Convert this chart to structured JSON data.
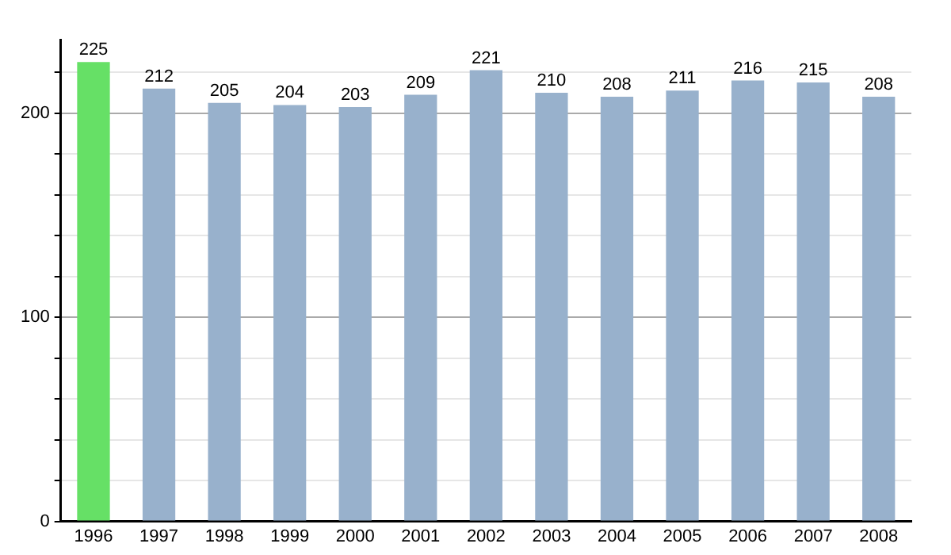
{
  "chart_data": {
    "type": "bar",
    "categories": [
      "1996",
      "1997",
      "1998",
      "1999",
      "2000",
      "2001",
      "2002",
      "2003",
      "2004",
      "2005",
      "2006",
      "2007",
      "2008"
    ],
    "values": [
      225,
      212,
      205,
      204,
      203,
      209,
      221,
      210,
      208,
      211,
      216,
      215,
      208
    ],
    "colors": [
      "#66e066",
      "#98b1cc",
      "#98b1cc",
      "#98b1cc",
      "#98b1cc",
      "#98b1cc",
      "#98b1cc",
      "#98b1cc",
      "#98b1cc",
      "#98b1cc",
      "#98b1cc",
      "#98b1cc",
      "#98b1cc"
    ],
    "ylim": [
      0,
      236
    ],
    "yticks": [
      0,
      {
        "value": 20,
        "label": null
      },
      {
        "value": 40,
        "label": null
      },
      {
        "value": 60,
        "label": null
      },
      {
        "value": 80,
        "label": null
      },
      100,
      {
        "value": 120,
        "label": null
      },
      {
        "value": 140,
        "label": null
      },
      {
        "value": 160,
        "label": null
      },
      {
        "value": 180,
        "label": null
      },
      200,
      {
        "value": 220,
        "label": null
      }
    ],
    "grid": "y",
    "data_labels": true
  }
}
